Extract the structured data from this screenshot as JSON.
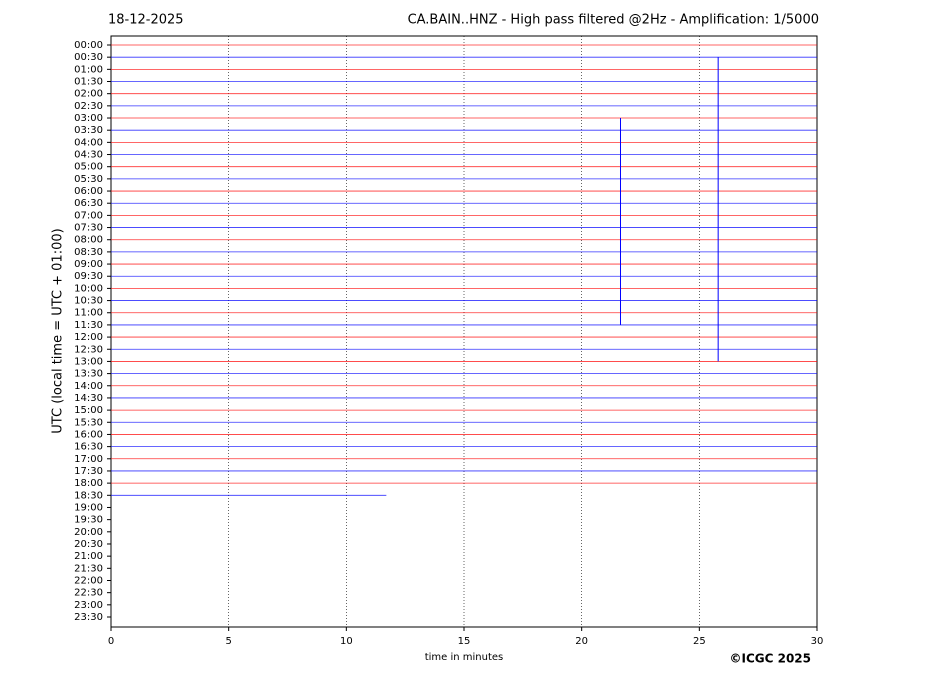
{
  "chart_data": {
    "type": "helicorder",
    "title_left": "18-12-2025",
    "title": "CA.BAIN..HNZ - High pass filtered @2Hz - Amplification: 1/5000",
    "y_label": "UTC (local time = UTC + 01:00)",
    "x_label": "time in minutes",
    "credit": "©ICGC 2025",
    "categories": [
      "00:00",
      "00:30",
      "01:00",
      "01:30",
      "02:00",
      "02:30",
      "03:00",
      "03:30",
      "04:00",
      "04:30",
      "05:00",
      "05:30",
      "06:00",
      "06:30",
      "07:00",
      "07:30",
      "08:00",
      "08:30",
      "09:00",
      "09:30",
      "10:00",
      "10:30",
      "11:00",
      "11:30",
      "12:00",
      "12:30",
      "13:00",
      "13:30",
      "14:00",
      "14:30",
      "15:00",
      "15:30",
      "16:00",
      "16:30",
      "17:00",
      "17:30",
      "18:00",
      "18:30",
      "19:00",
      "19:30",
      "20:00",
      "20:30",
      "21:00",
      "21:30",
      "22:00",
      "22:30",
      "23:00",
      "23:30"
    ],
    "trace_end": [
      30,
      30,
      30,
      30,
      30,
      30,
      30,
      30,
      30,
      30,
      30,
      30,
      30,
      30,
      30,
      30,
      30,
      30,
      30,
      30,
      30,
      30,
      30,
      30,
      30,
      30,
      30,
      30,
      30,
      30,
      30,
      30,
      30,
      30,
      30,
      30,
      30,
      11.7,
      null,
      null,
      null,
      null,
      null,
      null,
      null,
      null,
      null,
      null
    ],
    "colors": [
      "#ff0000",
      "#0000ff"
    ],
    "events": [
      {
        "x": 21.65,
        "y": [
          3.0,
          11.5
        ]
      },
      {
        "x": 25.8,
        "y": [
          0.5,
          13.0
        ]
      }
    ],
    "xlim": [
      0,
      30
    ],
    "xticks": [
      0,
      5,
      10,
      15,
      20,
      25,
      30
    ],
    "grid": true
  }
}
